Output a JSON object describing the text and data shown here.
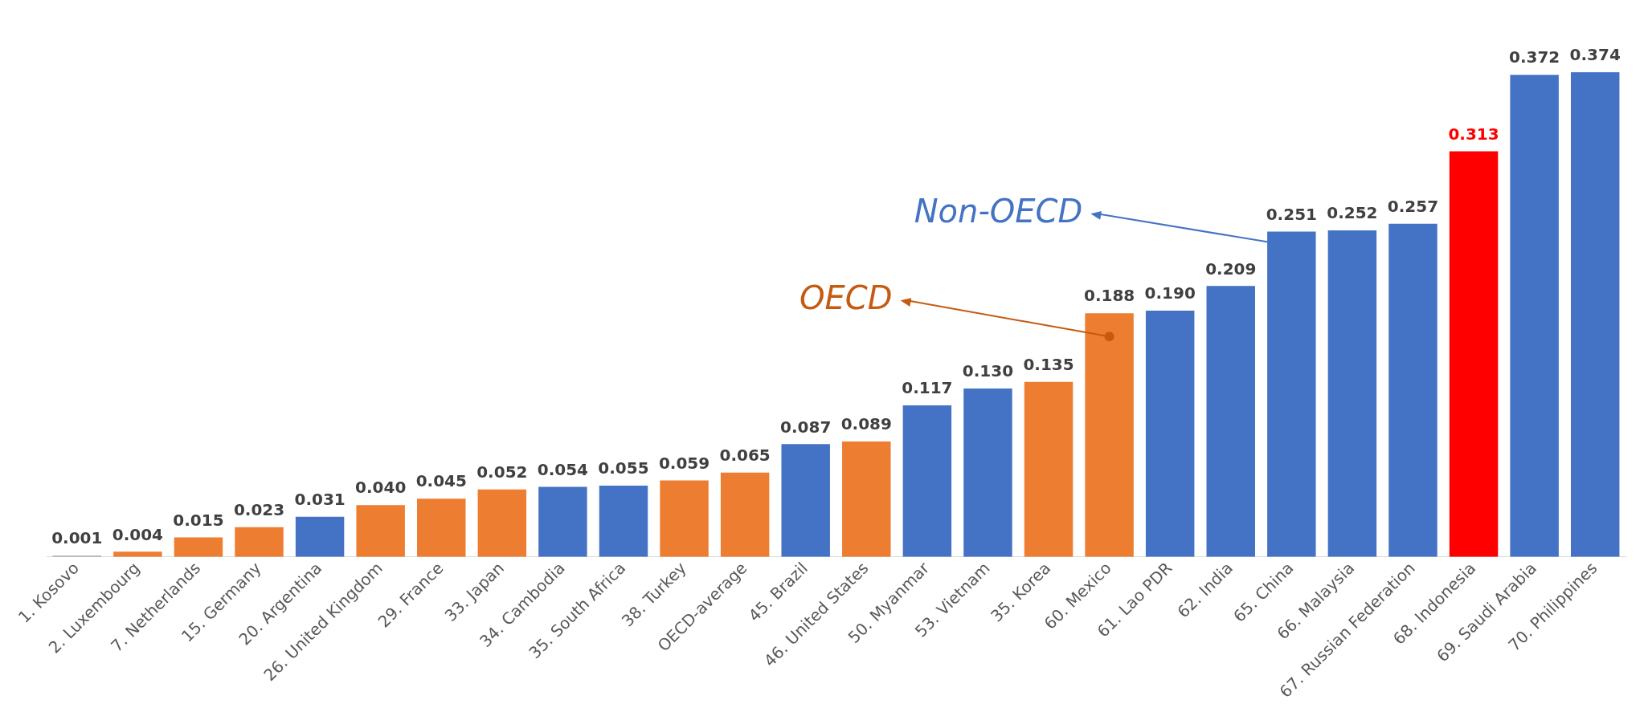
{
  "chart_data": {
    "type": "bar",
    "categories": [
      "1. Kosovo",
      "2. Luxembourg",
      "7. Netherlands",
      "15. Germany",
      "20. Argentina",
      "26. United Kingdom",
      "29. France",
      "33. Japan",
      "34. Cambodia",
      "35. South Africa",
      "38. Turkey",
      "OECD-average",
      "45. Brazil",
      "46. United States",
      "50. Myanmar",
      "53. Vietnam",
      "35. Korea",
      "60. Mexico",
      "61. Lao PDR",
      "62. India",
      "65. China",
      "66. Malaysia",
      "67. Russian Federation",
      "68. Indonesia",
      "69. Saudi Arabia",
      "70. Philippines"
    ],
    "values": [
      0.001,
      0.004,
      0.015,
      0.023,
      0.031,
      0.04,
      0.045,
      0.052,
      0.054,
      0.055,
      0.059,
      0.065,
      0.087,
      0.089,
      0.117,
      0.13,
      0.135,
      0.188,
      0.19,
      0.209,
      0.251,
      0.252,
      0.257,
      0.313,
      0.372,
      0.374
    ],
    "colors": [
      "#a5a5a5",
      "#ed7d31",
      "#ed7d31",
      "#ed7d31",
      "#4472c4",
      "#ed7d31",
      "#ed7d31",
      "#ed7d31",
      "#4472c4",
      "#4472c4",
      "#ed7d31",
      "#ed7d31",
      "#4472c4",
      "#ed7d31",
      "#4472c4",
      "#4472c4",
      "#ed7d31",
      "#ed7d31",
      "#4472c4",
      "#4472c4",
      "#4472c4",
      "#4472c4",
      "#4472c4",
      "#ff0000",
      "#4472c4",
      "#4472c4"
    ],
    "value_labels": [
      "0.001",
      "0.004",
      "0.015",
      "0.023",
      "0.031",
      "0.040",
      "0.045",
      "0.052",
      "0.054",
      "0.055",
      "0.059",
      "0.065",
      "0.087",
      "0.089",
      "0.117",
      "0.130",
      "0.135",
      "0.188",
      "0.190",
      "0.209",
      "0.251",
      "0.252",
      "0.257",
      "0.313",
      "0.372",
      "0.374"
    ],
    "legend": false,
    "grid": false,
    "annotations": [
      {
        "text": "OECD",
        "x": "60. Mexico",
        "y": 0.17
      },
      {
        "text": "Non-OECD",
        "x": "65. China",
        "y": 0.24
      }
    ]
  }
}
